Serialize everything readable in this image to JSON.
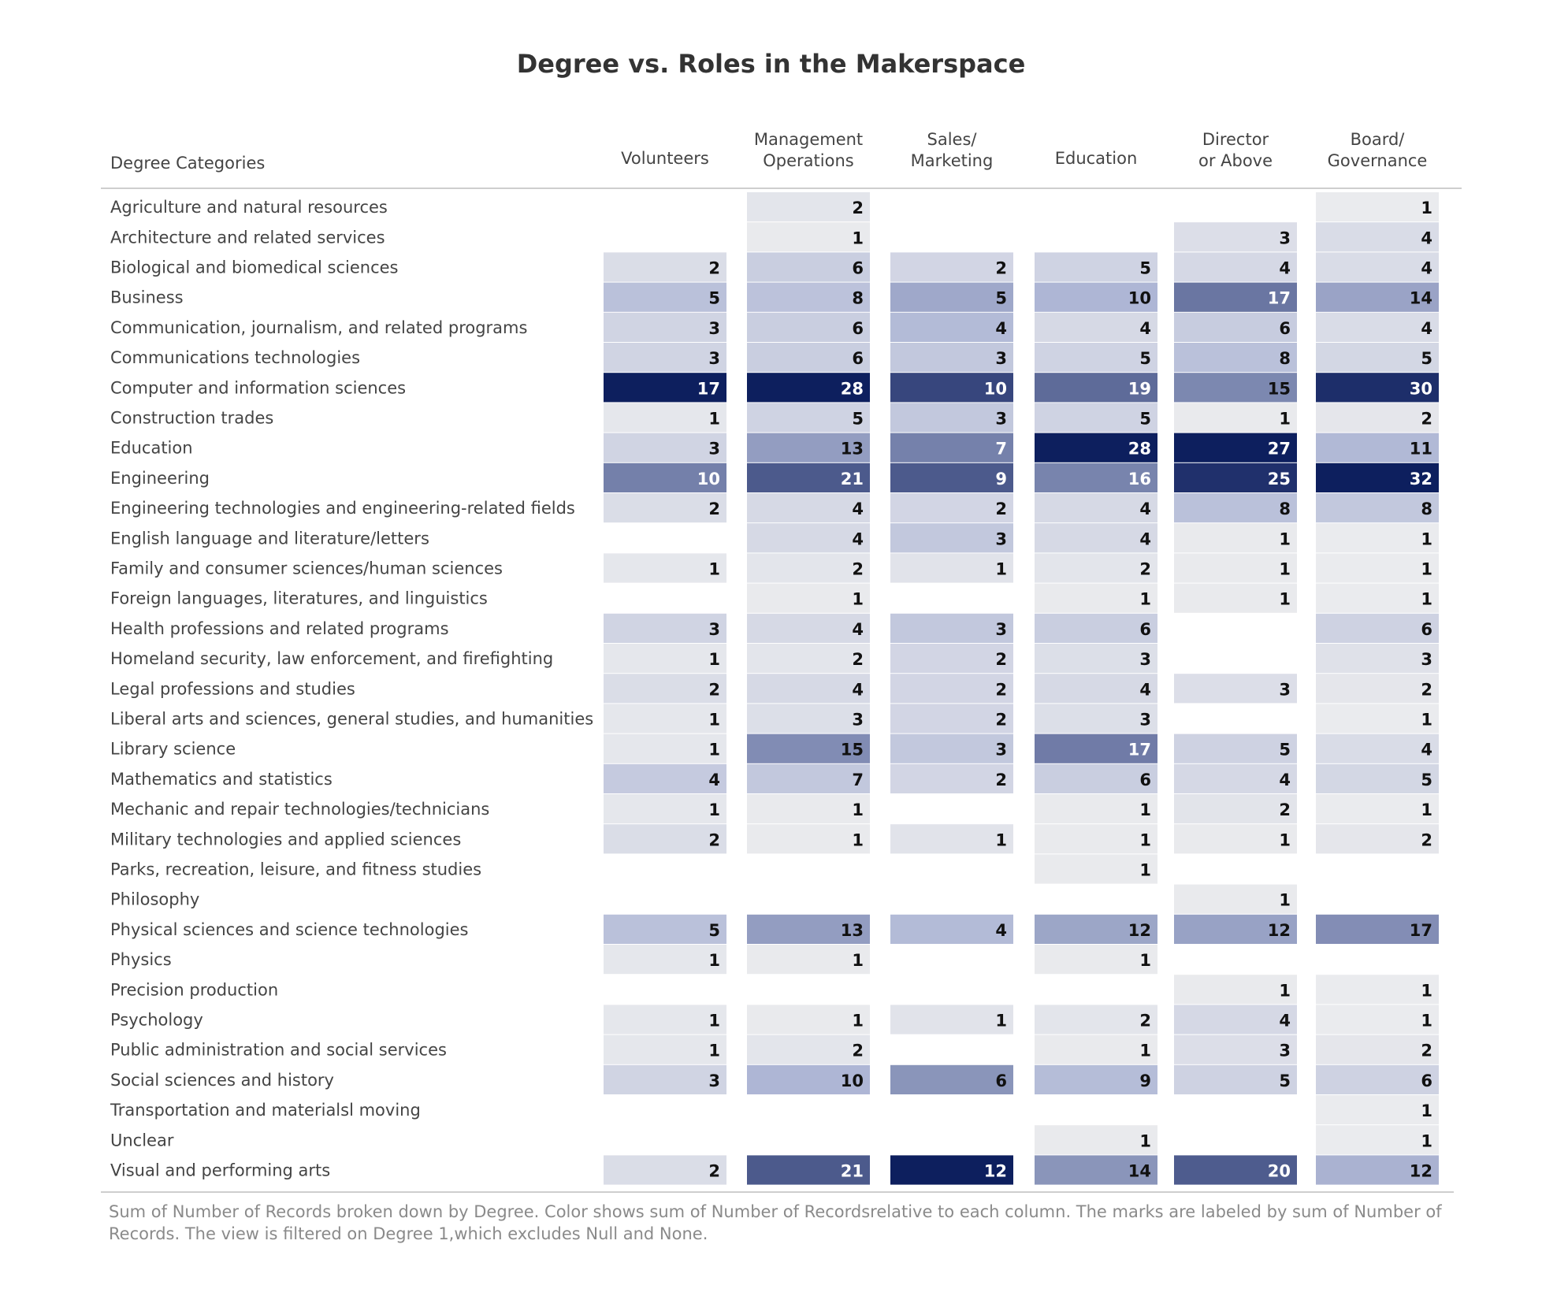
{
  "chart_data": {
    "type": "heatmap",
    "title": "Degree vs. Roles in the Makerspace",
    "row_header": "Degree  Categories",
    "columns": [
      [
        "Volunteers"
      ],
      [
        "Management",
        "Operations"
      ],
      [
        "Sales/",
        "Marketing"
      ],
      [
        "Education"
      ],
      [
        "Director",
        "or Above"
      ],
      [
        "Board/",
        "Governance"
      ]
    ],
    "rows": [
      "Agriculture and natural resources",
      "Architecture and related services",
      "Biological and biomedical sciences",
      "Business",
      "Communication, journalism, and related programs",
      "Communications technologies",
      "Computer and information sciences",
      "Construction trades",
      "Education",
      "Engineering",
      "Engineering technologies and engineering-related fields",
      "English language and literature/letters",
      "Family and consumer sciences/human sciences",
      "Foreign languages, literatures, and linguistics",
      "Health professions and related programs",
      "Homeland security, law enforcement, and firefighting",
      "Legal professions and studies",
      "Liberal arts and sciences, general studies, and humanities",
      "Library science",
      "Mathematics and statistics",
      "Mechanic and repair technologies/technicians",
      "Military technologies and applied sciences",
      "Parks, recreation, leisure, and fitness studies",
      "Philosophy",
      "Physical sciences and science technologies",
      "Physics",
      "Precision production",
      "Psychology",
      "Public administration and social services",
      "Social sciences and history",
      "Transportation and materialsl moving",
      "Unclear",
      "Visual and performing arts"
    ],
    "values": [
      [
        null,
        2,
        null,
        null,
        null,
        1
      ],
      [
        null,
        1,
        null,
        null,
        3,
        4
      ],
      [
        2,
        6,
        2,
        5,
        4,
        4
      ],
      [
        5,
        8,
        5,
        10,
        17,
        14
      ],
      [
        3,
        6,
        4,
        4,
        6,
        4
      ],
      [
        3,
        6,
        3,
        5,
        8,
        5
      ],
      [
        17,
        28,
        10,
        19,
        15,
        30
      ],
      [
        1,
        5,
        3,
        5,
        1,
        2
      ],
      [
        3,
        13,
        7,
        28,
        27,
        11
      ],
      [
        10,
        21,
        9,
        16,
        25,
        32
      ],
      [
        2,
        4,
        2,
        4,
        8,
        8
      ],
      [
        null,
        4,
        3,
        4,
        1,
        1
      ],
      [
        1,
        2,
        1,
        2,
        1,
        1
      ],
      [
        null,
        1,
        null,
        1,
        1,
        1
      ],
      [
        3,
        4,
        3,
        6,
        null,
        6
      ],
      [
        1,
        2,
        2,
        3,
        null,
        3
      ],
      [
        2,
        4,
        2,
        4,
        3,
        2
      ],
      [
        1,
        3,
        2,
        3,
        null,
        1
      ],
      [
        1,
        15,
        3,
        17,
        5,
        4
      ],
      [
        4,
        7,
        2,
        6,
        4,
        5
      ],
      [
        1,
        1,
        null,
        1,
        2,
        1
      ],
      [
        2,
        1,
        1,
        1,
        1,
        2
      ],
      [
        null,
        null,
        null,
        1,
        null,
        null
      ],
      [
        null,
        null,
        null,
        null,
        1,
        null
      ],
      [
        5,
        13,
        4,
        12,
        12,
        17
      ],
      [
        1,
        1,
        null,
        1,
        null,
        null
      ],
      [
        null,
        null,
        null,
        null,
        1,
        1
      ],
      [
        1,
        1,
        1,
        2,
        4,
        1
      ],
      [
        1,
        2,
        null,
        1,
        3,
        2
      ],
      [
        3,
        10,
        6,
        9,
        5,
        6
      ],
      [
        null,
        null,
        null,
        null,
        null,
        1
      ],
      [
        null,
        null,
        null,
        1,
        null,
        1
      ],
      [
        2,
        21,
        12,
        14,
        20,
        12
      ]
    ],
    "color_scale": {
      "low": "#f0f0f0",
      "high": "#0d1f5e"
    }
  },
  "caption": "Sum of Number of Records broken down by Degree.  Color shows sum of Number of Recordsrelative to each column.  The marks are labeled by sum of  Number of Records. The view is filtered on Degree 1,which excludes Null and None."
}
